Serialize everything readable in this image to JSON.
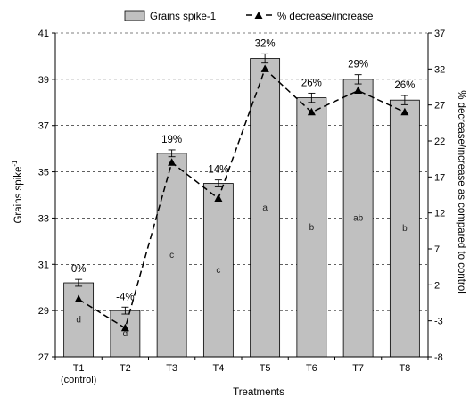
{
  "chart_data": {
    "type": "bar",
    "categories": [
      "T1",
      "T2",
      "T3",
      "T4",
      "T5",
      "T6",
      "T7",
      "T8"
    ],
    "category_sublabels": [
      "(control)",
      "",
      "",
      "",
      "",
      "",
      "",
      ""
    ],
    "series": [
      {
        "name": "Grains spike-1",
        "kind": "bar",
        "axis": "left",
        "values": [
          30.2,
          29.0,
          35.8,
          34.5,
          39.9,
          38.2,
          39.0,
          38.1
        ],
        "errors": [
          0.15,
          0.15,
          0.15,
          0.15,
          0.2,
          0.2,
          0.2,
          0.2
        ],
        "letters": [
          "d",
          "d",
          "c",
          "c",
          "a",
          "b",
          "ab",
          "b"
        ]
      },
      {
        "name": "% decrease/increase",
        "kind": "line",
        "axis": "right",
        "values": [
          0,
          -4,
          19,
          14,
          32,
          26,
          29,
          26
        ],
        "labels": [
          "0%",
          "-4%",
          "19%",
          "14%",
          "32%",
          "26%",
          "29%",
          "26%"
        ]
      }
    ],
    "xlabel": "Treatments",
    "ylabel_main": "Grains spike",
    "ylabel_sup": "-1",
    "ylabel_right": "% decrease/increase as compared to control",
    "ylim": [
      27,
      41
    ],
    "yticks": [
      27,
      29,
      31,
      33,
      35,
      37,
      39,
      41
    ],
    "y2lim": [
      -8,
      37
    ],
    "y2ticks": [
      -8,
      -3,
      2,
      7,
      12,
      17,
      22,
      27,
      32,
      37
    ],
    "grid": true,
    "legend_position": "top",
    "colors": {
      "bar_fill": "#c0c0c0",
      "bar_stroke": "#000000",
      "line": "#000000",
      "grid": "#000000"
    }
  }
}
